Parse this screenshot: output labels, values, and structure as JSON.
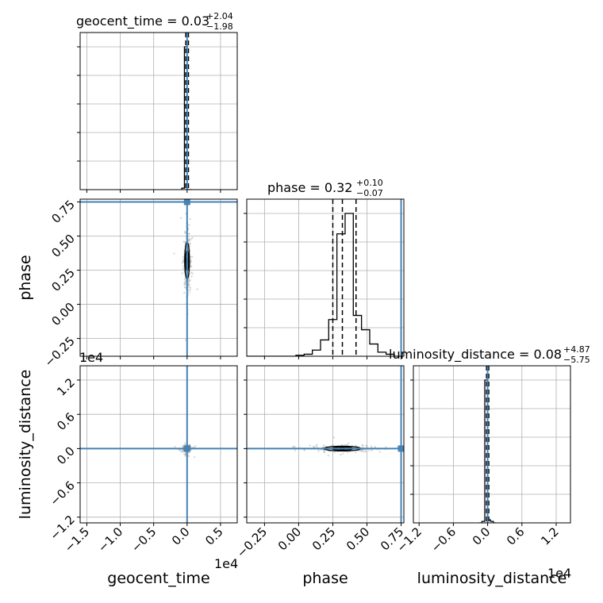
{
  "chart_data": {
    "type": "corner",
    "parameters": [
      "geocent_time",
      "phase",
      "luminosity_distance"
    ],
    "axis_labels": {
      "geocent_time": "geocent_time",
      "phase": "phase",
      "luminosity_distance": "luminosity_distance"
    },
    "titles": [
      {
        "param": "geocent_time",
        "prefix": "geocent_time = 0.03",
        "plus": "+2.04",
        "minus": "−1.98"
      },
      {
        "param": "phase",
        "prefix": "phase = 0.32",
        "plus": "+0.10",
        "minus": "−0.07"
      },
      {
        "param": "luminosity_distance",
        "prefix": "luminosity_distance = 0.08",
        "plus": "+4.87",
        "minus": "−5.75"
      }
    ],
    "offset_labels": {
      "geocent_time_x": "1e4",
      "luminosity_distance_x": "1e4",
      "luminosity_distance_y": "1e4"
    },
    "ranges": {
      "geocent_time": [
        -1.6,
        0.75
      ],
      "phase": [
        -0.38,
        0.77
      ],
      "luminosity_distance": [
        -1.3,
        1.45
      ]
    },
    "ticks": {
      "geocent_time": {
        "values": [
          -1.5,
          -1.0,
          -0.5,
          0.0,
          0.5
        ],
        "labels": [
          "−1.5",
          "−1.0",
          "−0.5",
          "0.0",
          "0.5"
        ]
      },
      "phase": {
        "values": [
          -0.25,
          0.0,
          0.25,
          0.5,
          0.75
        ],
        "labels": [
          "−0.25",
          "0.00",
          "0.25",
          "0.50",
          "0.75"
        ]
      },
      "luminosity_distance": {
        "values": [
          -1.2,
          -0.6,
          0.0,
          0.6,
          1.2
        ],
        "labels": [
          "−1.2",
          "−0.6",
          "0.0",
          "0.6",
          "1.2"
        ]
      }
    },
    "truths": {
      "geocent_time": 0.0,
      "phase": 0.75,
      "luminosity_distance": 0.0
    },
    "quantiles": {
      "geocent_time": [
        -0.02,
        0.0,
        0.02
      ],
      "phase": [
        0.25,
        0.32,
        0.42
      ],
      "luminosity_distance": [
        -0.02,
        0.0,
        0.02
      ]
    },
    "histograms": {
      "geocent_time": {
        "edges": [
          -0.08,
          -0.04,
          0.0,
          0.04,
          0.08
        ],
        "counts": [
          0.01,
          1.0,
          0.0,
          0.0
        ]
      },
      "phase": {
        "edges": [
          -0.38,
          -0.32,
          -0.26,
          -0.2,
          -0.14,
          -0.08,
          -0.02,
          0.04,
          0.1,
          0.16,
          0.22,
          0.28,
          0.34,
          0.4,
          0.46,
          0.52,
          0.58,
          0.64,
          0.7,
          0.76
        ],
        "counts": [
          0,
          0,
          0,
          0,
          0,
          0,
          0.005,
          0.01,
          0.03,
          0.08,
          0.18,
          0.6,
          0.7,
          0.2,
          0.13,
          0.06,
          0.02,
          0.01,
          0.0
        ]
      },
      "luminosity_distance": {
        "edges": [
          -0.15,
          -0.1,
          -0.05,
          0.0,
          0.05,
          0.1,
          0.15
        ],
        "counts": [
          0,
          0.01,
          0.96,
          0.02,
          0.01,
          0
        ]
      }
    },
    "grid": true,
    "truth_color": "#4682b4",
    "line_color": "#000000",
    "grid_color": "#b0b0b0",
    "sample_color": "#aaaaaa"
  }
}
